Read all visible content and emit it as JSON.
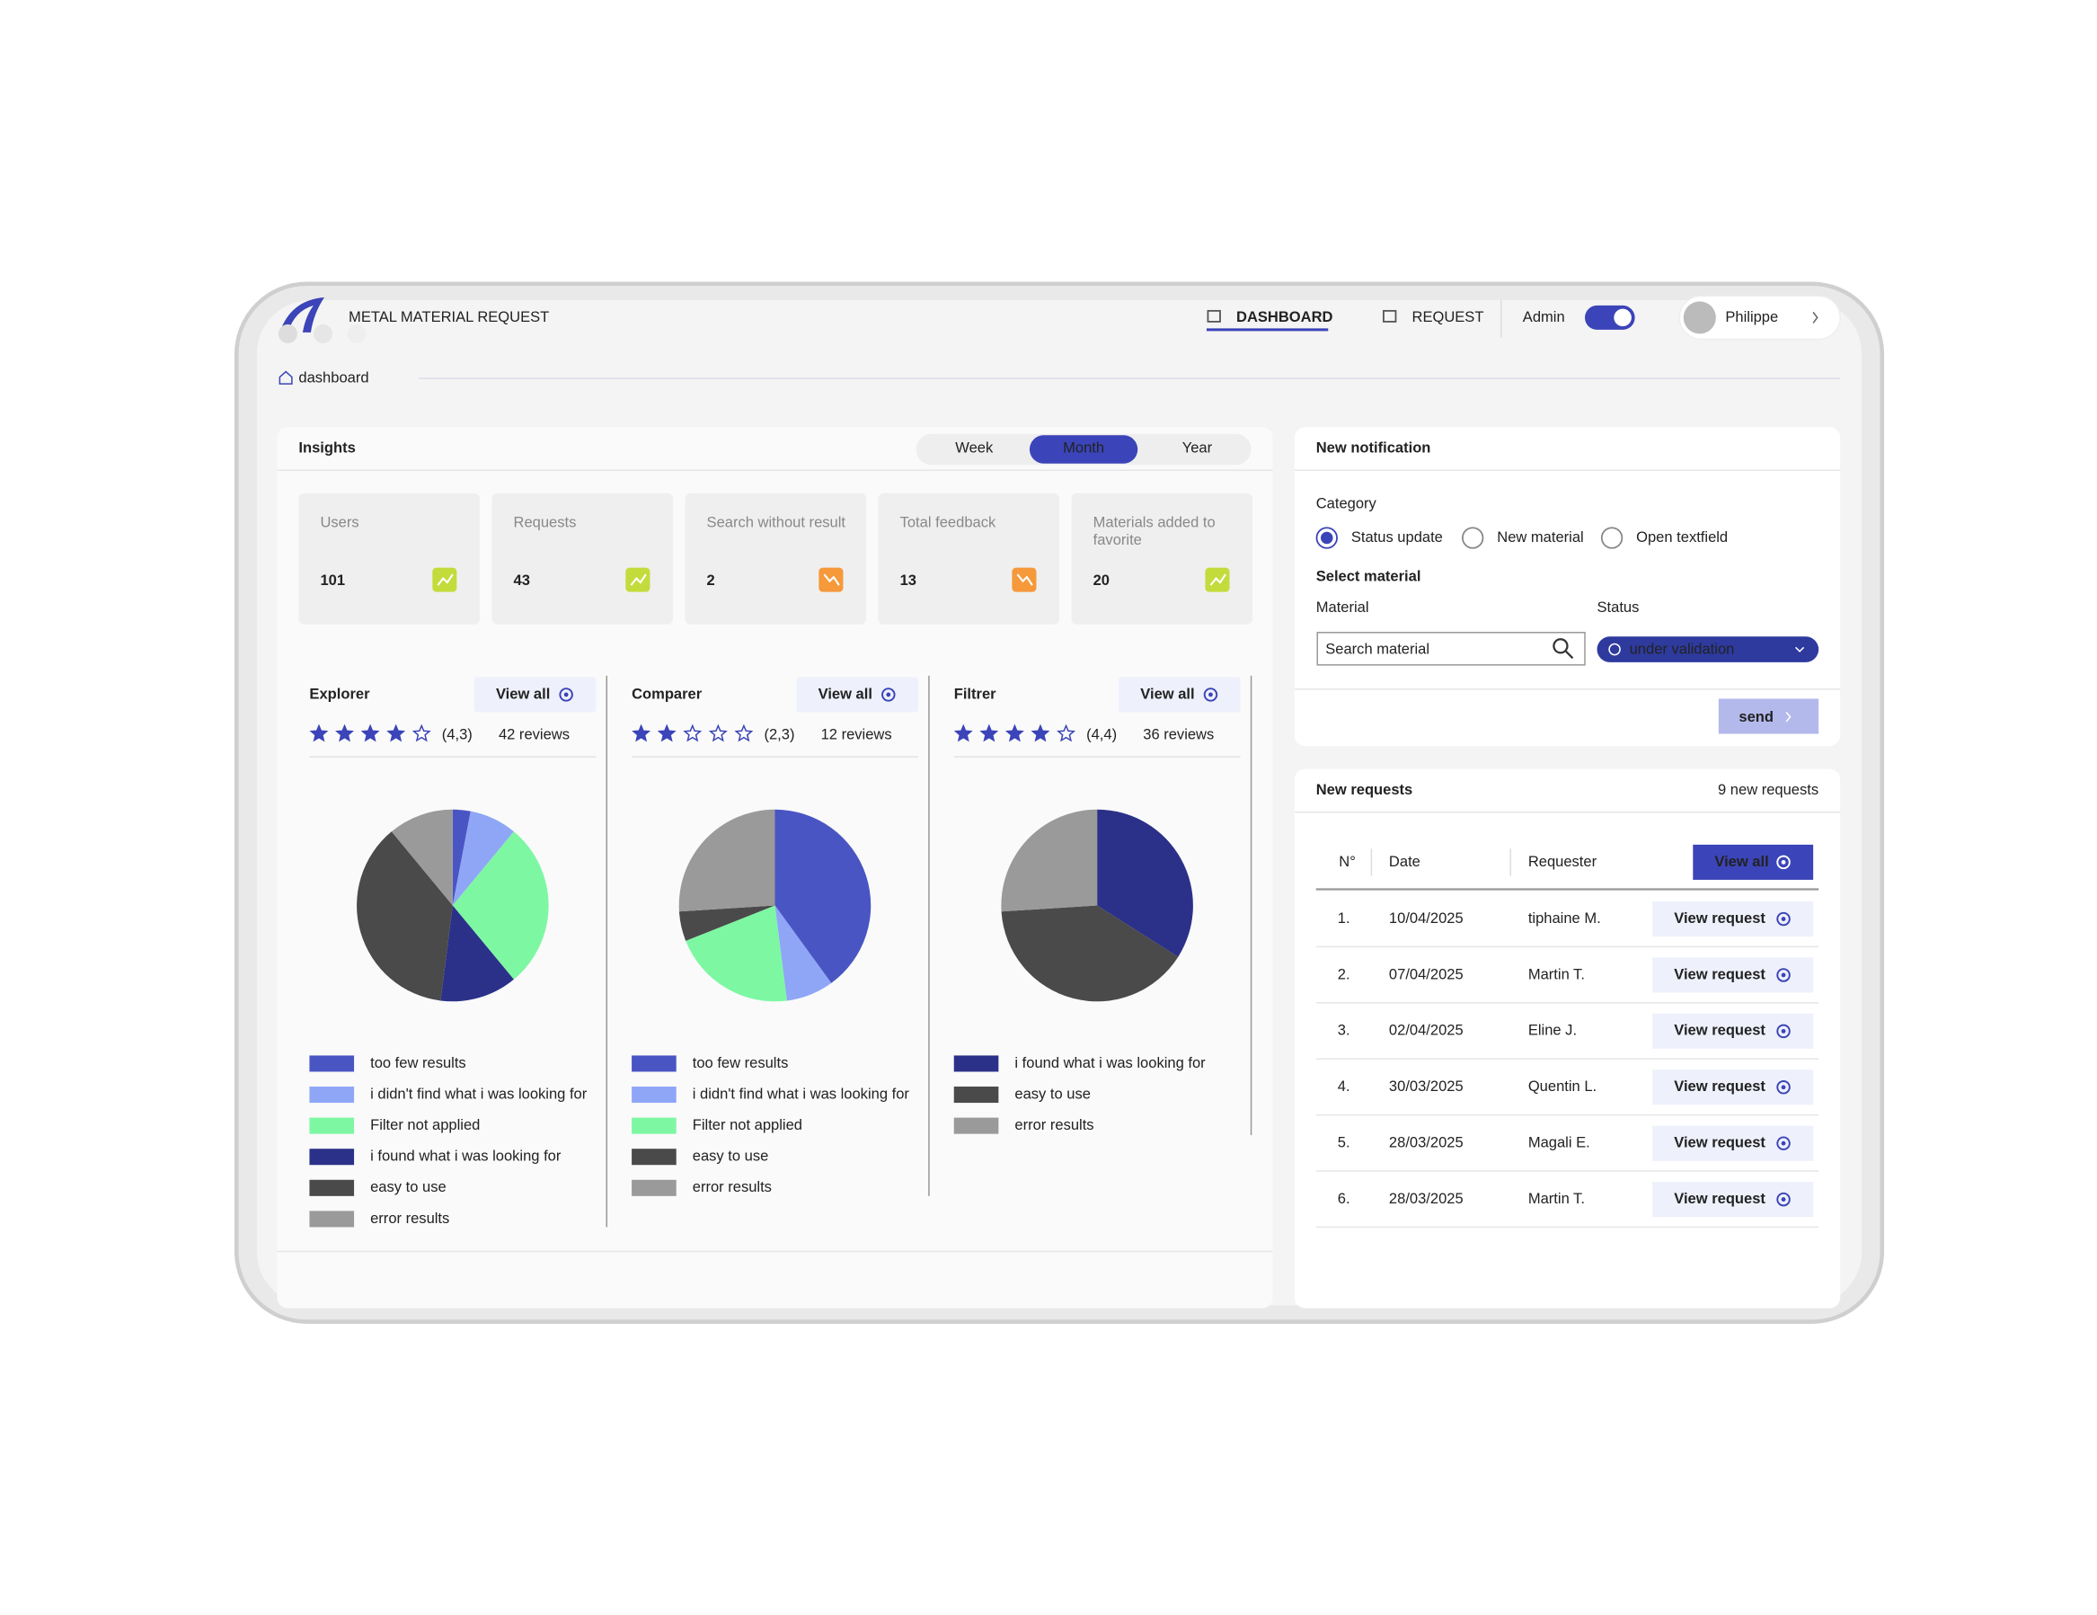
{
  "header": {
    "title": "METAL MATERIAL REQUEST",
    "nav": [
      "DASHBOARD",
      "REQUEST"
    ],
    "active_nav": 0,
    "admin": "Admin",
    "user": "Philippe"
  },
  "breadcrumb": "dashboard",
  "insights": {
    "title": "Insights",
    "periods": [
      "Week",
      "Month",
      "Year"
    ],
    "active_period": 1,
    "stats": [
      {
        "label": "Users",
        "value": 101,
        "trend": "up"
      },
      {
        "label": "Requests",
        "value": 43,
        "trend": "up"
      },
      {
        "label": "Search without result",
        "value": 2,
        "trend": "down"
      },
      {
        "label": "Total feedback",
        "value": 13,
        "trend": "down"
      },
      {
        "label": "Materials added to favorite",
        "value": 20,
        "trend": "up"
      }
    ]
  },
  "panels": [
    {
      "title": "Explorer",
      "view_all": "View all",
      "stars": 4,
      "rating": "(4,3)",
      "reviews": "42 reviews",
      "chart": {
        "type": "pie",
        "categories": [
          "too few results",
          "i didn't find what i was looking for",
          "Filter not applied",
          "i found what i was looking for",
          "easy to use",
          "error results"
        ],
        "values": [
          3,
          8,
          28,
          13,
          37,
          11
        ],
        "colors": [
          "#4a55c4",
          "#8fa6f7",
          "#7ef7a3",
          "#2b3189",
          "#4a4a4a",
          "#9a9a9a"
        ]
      }
    },
    {
      "title": "Comparer",
      "view_all": "View all",
      "stars": 2,
      "rating": "(2,3)",
      "reviews": "12 reviews",
      "chart": {
        "type": "pie",
        "categories": [
          "too few results",
          "i didn't find what i was looking for",
          "Filter not applied",
          "easy to use",
          "error results"
        ],
        "values": [
          40,
          8,
          21,
          5,
          26
        ],
        "colors": [
          "#4a55c4",
          "#8fa6f7",
          "#7ef7a3",
          "#4a4a4a",
          "#9a9a9a"
        ]
      }
    },
    {
      "title": "Filtrer",
      "view_all": "View all",
      "stars": 4,
      "rating": "(4,4)",
      "reviews": "36 reviews",
      "chart": {
        "type": "pie",
        "categories": [
          "i found what i was looking for",
          "easy to use",
          "error results"
        ],
        "values": [
          34,
          40,
          26
        ],
        "colors": [
          "#2b3189",
          "#4a4a4a",
          "#9a9a9a"
        ]
      }
    }
  ],
  "notification": {
    "title": "New notification",
    "category_label": "Category",
    "options": [
      "Status update",
      "New material",
      "Open textfield"
    ],
    "selected": 0,
    "select_material": "Select material",
    "material_label": "Material",
    "status_label": "Status",
    "search_placeholder": "Search material",
    "status_value": "under validation",
    "send": "send"
  },
  "requests": {
    "title": "New requests",
    "count": "9 new requests",
    "columns": [
      "N°",
      "Date",
      "Requester"
    ],
    "view_all": "View all",
    "rows": [
      [
        "1.",
        "10/04/2025",
        "tiphaine M.",
        "View request"
      ],
      [
        "2.",
        "07/04/2025",
        "Martin T.",
        "View request"
      ],
      [
        "3.",
        "02/04/2025",
        "Eline J.",
        "View request"
      ],
      [
        "4.",
        "30/03/2025",
        "Quentin L.",
        "View request"
      ],
      [
        "5.",
        "28/03/2025",
        "Magali E.",
        "View request"
      ],
      [
        "6.",
        "28/03/2025",
        "Martin T.",
        "View request"
      ]
    ]
  }
}
